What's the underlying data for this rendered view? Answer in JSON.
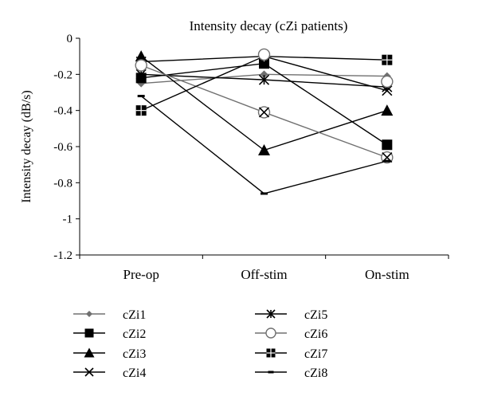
{
  "chart_data": {
    "type": "line",
    "title": "Intensity decay (cZi patients)",
    "xlabel": "",
    "ylabel": "Intensity decay (dB/s)",
    "categories": [
      "Pre-op",
      "Off-stim",
      "On-stim"
    ],
    "ylim": [
      -1.2,
      0
    ],
    "yticks": [
      0,
      -0.2,
      -0.4,
      -0.6,
      -0.8,
      -1,
      -1.2
    ],
    "ytick_labels": [
      "0",
      "-0.2",
      "-0.4",
      "-0.6",
      "-0.8",
      "-1",
      "-1.2"
    ],
    "grid": false,
    "legend_position": "bottom",
    "series": [
      {
        "name": "cZi1",
        "marker": "diamond",
        "color": "#707070",
        "values": [
          -0.25,
          -0.2,
          -0.21
        ]
      },
      {
        "name": "cZi2",
        "marker": "square",
        "color": "#000000",
        "values": [
          -0.22,
          -0.14,
          -0.59
        ]
      },
      {
        "name": "cZi3",
        "marker": "triangle",
        "color": "#000000",
        "values": [
          -0.1,
          -0.62,
          -0.4
        ]
      },
      {
        "name": "cZi4",
        "marker": "x",
        "color": "#000000",
        "values": [
          -0.13,
          -0.1,
          -0.29
        ]
      },
      {
        "name": "cZi5",
        "marker": "asterisk",
        "color": "#000000",
        "values": [
          -0.2,
          -0.23,
          -0.27
        ]
      },
      {
        "name": "cZi6",
        "marker": "circle",
        "color": "#707070",
        "values": [
          -0.15,
          -0.41,
          -0.66
        ]
      },
      {
        "name": "cZi7",
        "marker": "square-plus",
        "color": "#000000",
        "values": [
          -0.4,
          -0.1,
          -0.12
        ]
      },
      {
        "name": "cZi8",
        "marker": "dash",
        "color": "#000000",
        "values": [
          -0.32,
          -0.86,
          -0.68
        ]
      }
    ],
    "special_markers": [
      {
        "series": "cZi6",
        "category": "Off-stim",
        "value": -0.09,
        "marker": "circle"
      },
      {
        "series": "cZi6",
        "category": "On-stim",
        "value": -0.24,
        "marker": "circle"
      },
      {
        "series": "cZi4",
        "category": "Off-stim",
        "value": -0.41,
        "marker": "x"
      },
      {
        "series": "cZi4",
        "category": "On-stim",
        "value": -0.66,
        "marker": "x"
      }
    ]
  }
}
